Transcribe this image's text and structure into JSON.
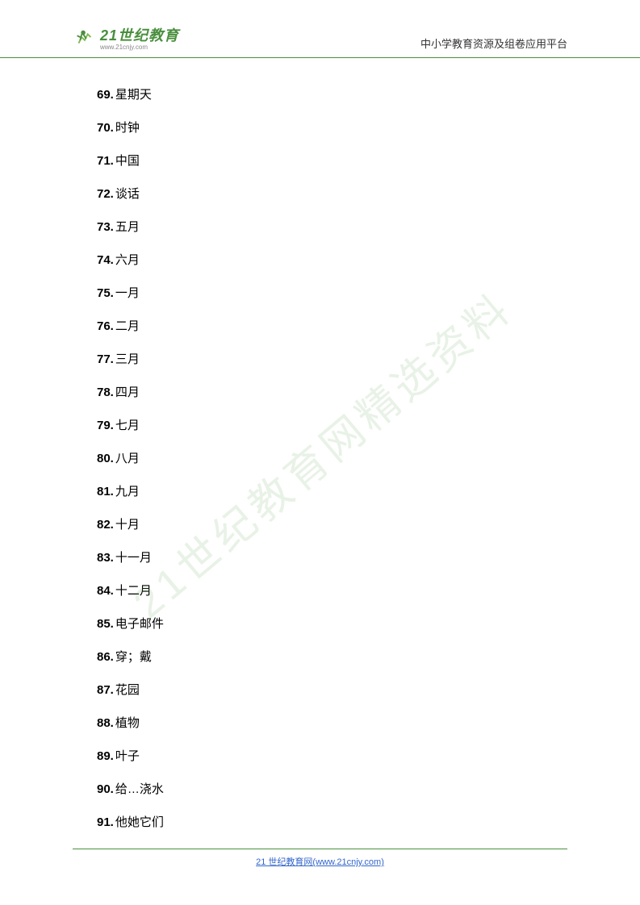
{
  "header": {
    "logo_main": "21世纪教育",
    "logo_sub": "www.21cnjy.com",
    "right_text": "中小学教育资源及组卷应用平台"
  },
  "watermark": "21世纪教育网精选资料",
  "footer": {
    "text": "21 世纪教育网(www.21cnjy.com)"
  },
  "items": [
    {
      "num": "69.",
      "text": "星期天"
    },
    {
      "num": "70.",
      "text": "时钟"
    },
    {
      "num": "71.",
      "text": "中国"
    },
    {
      "num": "72.",
      "text": "谈话"
    },
    {
      "num": "73.",
      "text": "五月"
    },
    {
      "num": "74.",
      "text": "六月"
    },
    {
      "num": "75.",
      "text": "一月"
    },
    {
      "num": "76.",
      "text": "二月"
    },
    {
      "num": "77.",
      "text": "三月"
    },
    {
      "num": "78.",
      "text": "四月"
    },
    {
      "num": "79.",
      "text": "七月"
    },
    {
      "num": "80.",
      "text": "八月"
    },
    {
      "num": "81.",
      "text": "九月"
    },
    {
      "num": "82.",
      "text": "十月"
    },
    {
      "num": "83.",
      "text": "十一月"
    },
    {
      "num": "84.",
      "text": "十二月"
    },
    {
      "num": "85.",
      "text": "电子邮件"
    },
    {
      "num": "86.",
      "text": "穿；戴"
    },
    {
      "num": "87.",
      "text": "花园"
    },
    {
      "num": "88.",
      "text": "植物"
    },
    {
      "num": "89.",
      "text": "叶子"
    },
    {
      "num": "90.",
      "text": "给…浇水"
    },
    {
      "num": "91.",
      "text": "他她它们"
    }
  ],
  "colors": {
    "primary_green": "#4a8f3e",
    "link_blue": "#3366cc",
    "text_black": "#000000",
    "watermark_green": "rgba(100, 170, 90, 0.15)"
  }
}
